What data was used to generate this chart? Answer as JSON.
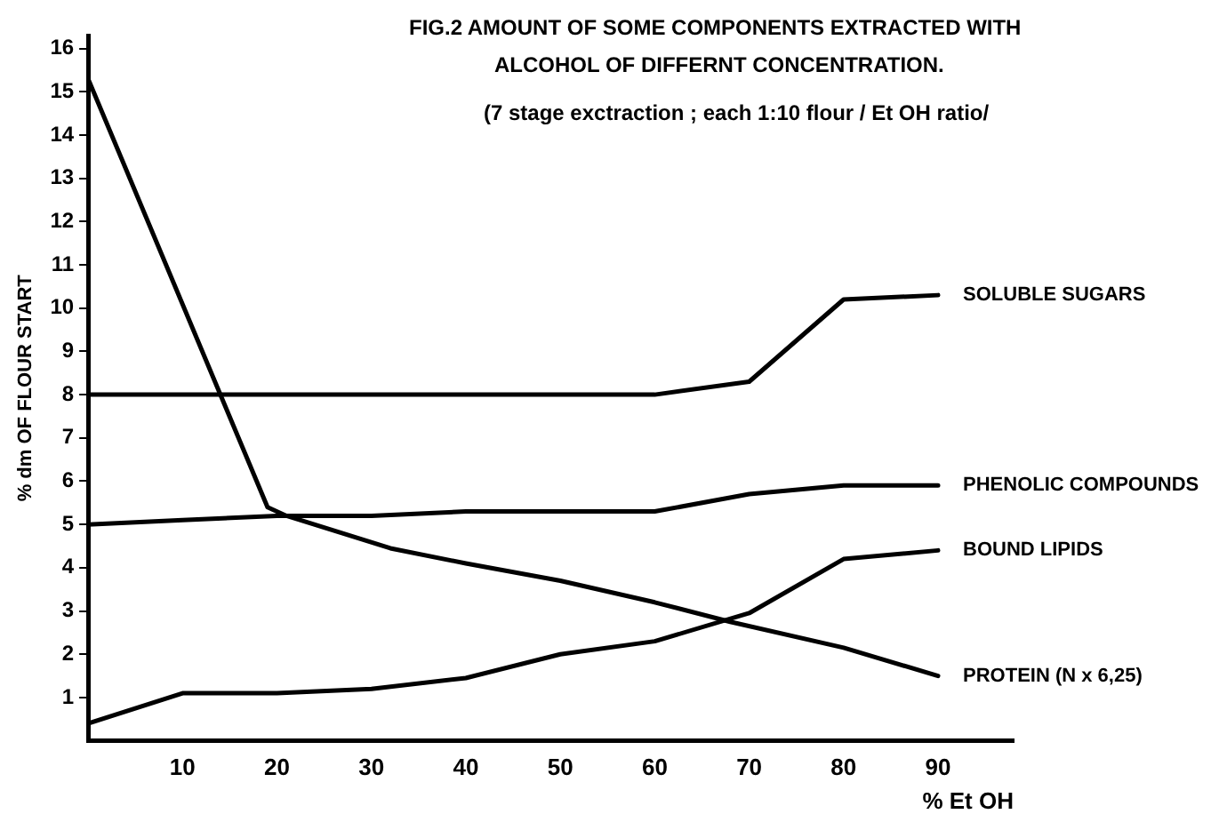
{
  "chart_data": {
    "type": "line",
    "title": "FIG.2 AMOUNT OF SOME COMPONENTS EXTRACTED WITH\nALCOHOL OF DIFFERNT CONCENTRATION.",
    "subtitle": "(7 stage exctraction ; each 1:10 flour / Et OH ratio/",
    "xlabel": "% Et OH",
    "ylabel": "% dm OF FLOUR START",
    "xlim": [
      0,
      98
    ],
    "xticks": [
      10,
      20,
      30,
      40,
      50,
      60,
      70,
      80,
      90
    ],
    "ylim": [
      0,
      16.3
    ],
    "yticks": [
      1,
      2,
      3,
      4,
      5,
      6,
      7,
      8,
      9,
      10,
      11,
      12,
      13,
      14,
      15,
      16
    ],
    "grid": false,
    "legend": false,
    "marker": "none",
    "line_style": "solid",
    "series": [
      {
        "name": "SOLUBLE SUGARS",
        "color": "#000000",
        "x": [
          0,
          10,
          20,
          30,
          40,
          50,
          60,
          70,
          80,
          90
        ],
        "values": [
          8,
          8,
          8,
          8,
          8,
          8,
          8,
          8.3,
          10.2,
          10.3
        ]
      },
      {
        "name": "PHENOLIC COMPOUNDS",
        "color": "#000000",
        "x": [
          0,
          10,
          20,
          30,
          40,
          50,
          60,
          70,
          80,
          90
        ],
        "values": [
          5,
          5.1,
          5.2,
          5.2,
          5.3,
          5.3,
          5.3,
          5.7,
          5.9,
          5.9
        ]
      },
      {
        "name": "BOUND LIPIDS",
        "color": "#000000",
        "x": [
          0,
          10,
          20,
          30,
          40,
          50,
          60,
          70,
          80,
          90
        ],
        "values": [
          0.4,
          1.1,
          1.1,
          1.2,
          1.45,
          2,
          2.3,
          2.95,
          4.2,
          4.4
        ]
      },
      {
        "name": "PROTEIN (N x 6,25)",
        "color": "#000000",
        "x": [
          0,
          19,
          21,
          32,
          40,
          50,
          60,
          68,
          80,
          90
        ],
        "values": [
          15.3,
          5.4,
          5.2,
          4.45,
          4.1,
          3.7,
          3.2,
          2.75,
          2.15,
          1.5
        ]
      }
    ]
  }
}
